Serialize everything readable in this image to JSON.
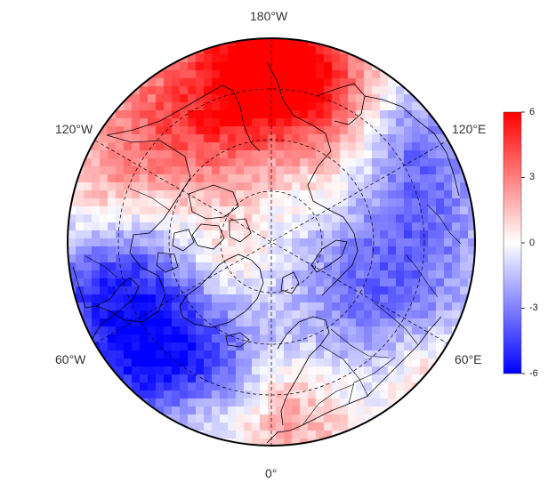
{
  "map": {
    "projection": "north-polar-stereographic",
    "longitude_labels": {
      "top": "180°W",
      "bottom": "0°",
      "upper_left": "120°W",
      "upper_right": "120°E",
      "lower_left": "60°W",
      "lower_right": "60°E"
    },
    "field_description": "temperature anomaly field (diverging blue-white-red)"
  },
  "colorbar": {
    "min": -6,
    "max": 6,
    "ticks": [
      "6",
      "3",
      "0",
      "-3",
      "-6"
    ],
    "colors": {
      "low": "#0000ff",
      "mid": "#ffffff",
      "high": "#ff0000"
    }
  },
  "colors": {
    "coastline": "#000000",
    "grid": "#000000",
    "background": "#ffffff"
  }
}
